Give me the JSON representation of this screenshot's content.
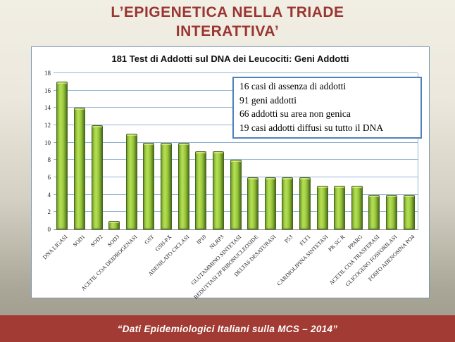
{
  "slide": {
    "title_line1": "L’EPIGENETICA NELLA TRIADE",
    "title_line2": "INTERATTIVA’",
    "footer": "“Dati Epidemiologici Italiani sulla MCS – 2014”"
  },
  "annotation_box": {
    "lines": [
      "16 casi di assenza di addotti",
      "91 geni addotti",
      "66 addotti su area non genica",
      "19 casi addotti diffusi su tutto il DNA"
    ]
  },
  "colors": {
    "title_red": "#9a3531",
    "footer_band_red": "#a23b33",
    "bar_green": "#9ccb40",
    "grid_blue": "#92b4d4",
    "annotation_border_blue": "#4f81bd",
    "panel_border": "#7395b5"
  },
  "chart_data": {
    "type": "bar",
    "title": "181 Test di Addotti sul DNA dei Leucociti: Geni Addotti",
    "categories": [
      "DNA LIGASI",
      "SOD1",
      "SOD2",
      "SOD3",
      "ACETIL COA DEIDROGENASI",
      "GST",
      "GSH-PX",
      "ADENILATO CICLASI",
      "IP10",
      "NLRP3",
      "GLUTAMMINO SINTETASI",
      "REDUTTASI 2P RIBONUCLEOSIDE",
      "DELTA6 DESATURASI",
      "P53",
      "FLT1",
      "CARDIOLIPINA SINTETASI",
      "PK SC R",
      "PPARG",
      "ACETIL COA TRASFERASI",
      "GLICOGENO FOSFORILASI",
      "FOSFO ADENOSINA PO4"
    ],
    "values": [
      17,
      14,
      12,
      1,
      11,
      10,
      10,
      10,
      9,
      9,
      8,
      6,
      6,
      6,
      6,
      5,
      5,
      5,
      4,
      4,
      4
    ],
    "xlabel": "",
    "ylabel": "",
    "ylim": [
      0,
      18
    ],
    "yticks": [
      0,
      2,
      4,
      6,
      8,
      10,
      12,
      14,
      16,
      18
    ],
    "grid": true,
    "legend_position": "none"
  }
}
